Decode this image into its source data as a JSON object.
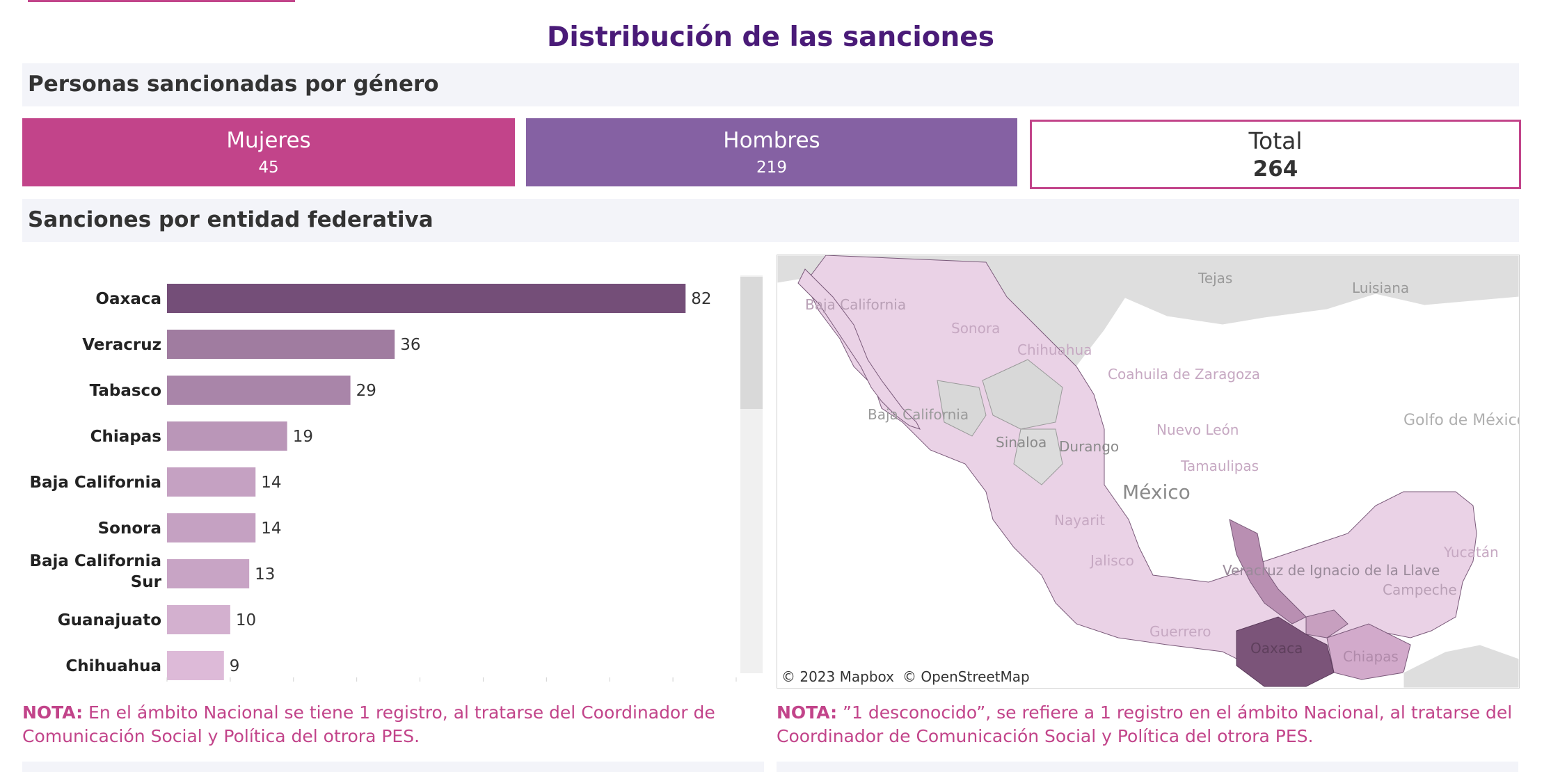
{
  "header": {
    "title": "Distribución de las sanciones"
  },
  "section_gender": {
    "title": "Personas sancionadas por género",
    "cards": {
      "mujeres": {
        "label": "Mujeres",
        "value": "45"
      },
      "hombres": {
        "label": "Hombres",
        "value": "219"
      },
      "total": {
        "label": "Total",
        "value": "264"
      }
    }
  },
  "section_state": {
    "title": "Sanciones por entidad federativa"
  },
  "chart_data": {
    "type": "bar",
    "orientation": "horizontal",
    "categories": [
      "Oaxaca",
      "Veracruz",
      "Tabasco",
      "Chiapas",
      "Baja California",
      "Sonora",
      "Baja California Sur",
      "Guanajuato",
      "Chihuahua"
    ],
    "values": [
      82,
      36,
      29,
      19,
      14,
      14,
      13,
      10,
      9
    ],
    "xlim": [
      0,
      90
    ],
    "grid": false,
    "colors": {
      "max": "#744e78",
      "min": "#ddbad8"
    }
  },
  "map": {
    "labels": [
      "Tejas",
      "Luisiana",
      "Baja California",
      "Sonora",
      "Chihuahua",
      "Coahuila de Zaragoza",
      "Baja California",
      "Sinaloa",
      "Durango",
      "Nuevo León",
      "Tamaulipas",
      "México",
      "Golfo de México",
      "Nayarit",
      "Jalisco",
      "Veracruz de Ignacio de la Llave",
      "Yucatán",
      "Campeche",
      "Guerrero",
      "Oaxaca",
      "Chiapas"
    ],
    "attribution": [
      "© 2023 Mapbox",
      "© OpenStreetMap"
    ]
  },
  "notes": {
    "left": {
      "prefix": "NOTA:",
      "text": " En el ámbito Nacional se tiene 1 registro, al tratarse del Coordinador de Comunicación Social y Política del otrora PES."
    },
    "right": {
      "prefix": "NOTA:",
      "text": " ”1 desconocido”, se refiere a 1 registro en el ámbito Nacional, al tratarse del Coordinador de Comunicación Social y Política del otrora PES."
    }
  },
  "colors": {
    "accent_pink": "#c2448a",
    "accent_purple": "#8561a3",
    "title_purple": "#4a1b78"
  }
}
